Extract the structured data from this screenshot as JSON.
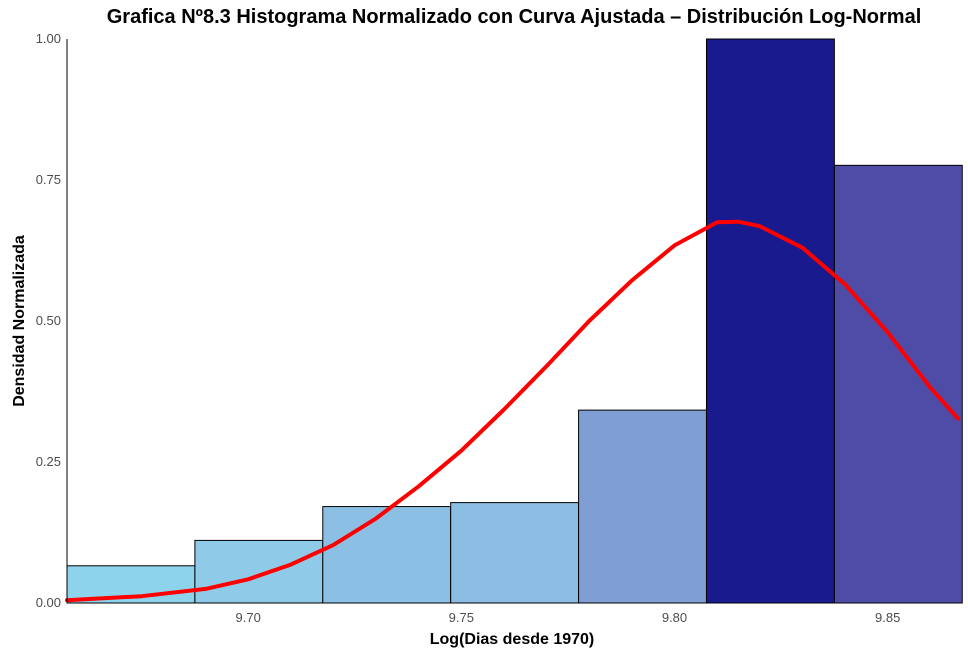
{
  "chart_data": {
    "type": "bar",
    "title": "Grafica Nº8.3 Histograma Normalizado con Curva Ajustada – Distribución Log-Normal",
    "xlabel": "Log(Dias desde 1970)",
    "ylabel": "Densidad Normalizada",
    "xlim": [
      9.6575,
      9.8665
    ],
    "ylim": [
      0,
      1.0
    ],
    "x_ticks": [
      9.7,
      9.75,
      9.8,
      9.85
    ],
    "x_tick_labels": [
      "9.70",
      "9.75",
      "9.80",
      "9.85"
    ],
    "y_ticks": [
      0,
      0.25,
      0.5,
      0.75,
      1.0
    ],
    "y_tick_labels": [
      "0.00",
      "0.25",
      "0.50",
      "0.75",
      "1.00"
    ],
    "grid": false,
    "bins": [
      {
        "x0": 9.6575,
        "x1": 9.6875,
        "value": 0.066,
        "color": "#8ed3ec"
      },
      {
        "x0": 9.6875,
        "x1": 9.7175,
        "value": 0.111,
        "color": "#8fcae8"
      },
      {
        "x0": 9.7175,
        "x1": 9.7475,
        "value": 0.171,
        "color": "#8cbfe4"
      },
      {
        "x0": 9.7475,
        "x1": 9.7775,
        "value": 0.178,
        "color": "#8cbde3"
      },
      {
        "x0": 9.7775,
        "x1": 9.8075,
        "value": 0.342,
        "color": "#7f9fd4"
      },
      {
        "x0": 9.8075,
        "x1": 9.8375,
        "value": 1.0,
        "color": "#1a1a8f"
      },
      {
        "x0": 9.8375,
        "x1": 9.8675,
        "value": 0.776,
        "color": "#4f4ca8"
      }
    ],
    "curve": {
      "type": "line",
      "color": "#ff0000",
      "x": [
        9.6575,
        9.675,
        9.69,
        9.7,
        9.71,
        9.72,
        9.73,
        9.74,
        9.75,
        9.76,
        9.77,
        9.78,
        9.79,
        9.8,
        9.81,
        9.815,
        9.82,
        9.83,
        9.84,
        9.85,
        9.86,
        9.8665
      ],
      "y": [
        0.005,
        0.012,
        0.025,
        0.042,
        0.068,
        0.103,
        0.15,
        0.207,
        0.27,
        0.343,
        0.42,
        0.5,
        0.572,
        0.634,
        0.675,
        0.676,
        0.668,
        0.63,
        0.565,
        0.48,
        0.382,
        0.327
      ]
    }
  }
}
